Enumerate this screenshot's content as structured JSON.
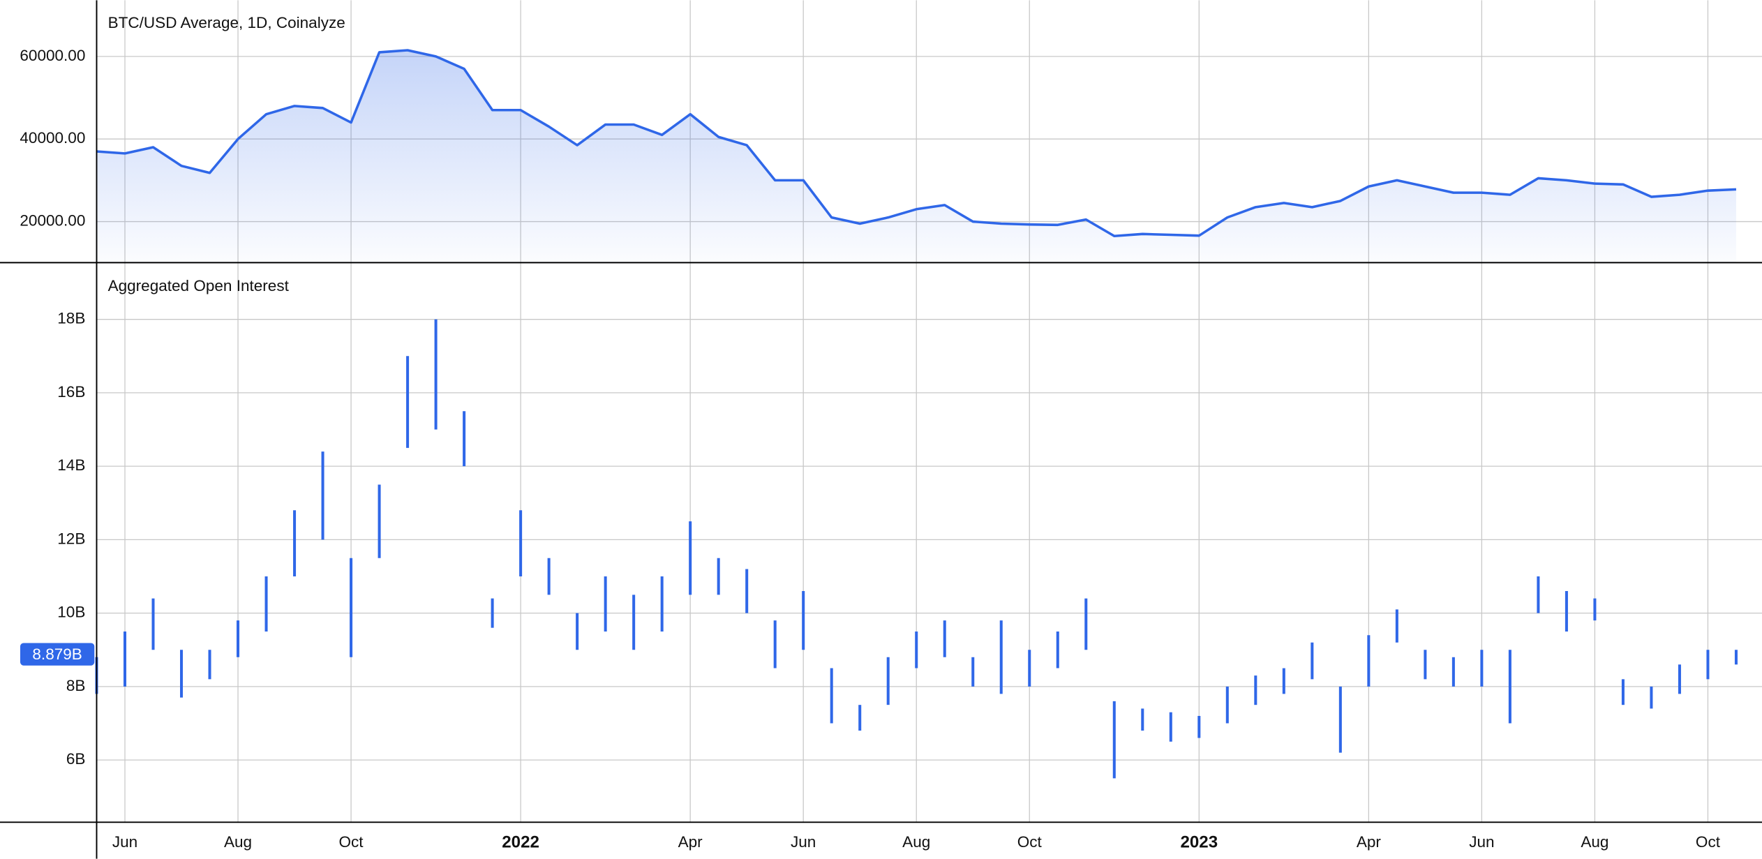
{
  "chart_data": [
    {
      "type": "area-line",
      "title": "BTC/USD Average, 1D, Coinalyze",
      "color": "#2f67e8",
      "values": [
        37000,
        36500,
        38000,
        33500,
        31800,
        40000,
        46000,
        48000,
        47500,
        44000,
        61000,
        61500,
        60000,
        57000,
        47000,
        47000,
        43000,
        38500,
        43500,
        43500,
        41000,
        46000,
        40500,
        38500,
        30000,
        30000,
        21000,
        19500,
        21000,
        23000,
        24000,
        20000,
        19500,
        19300,
        19200,
        20500,
        16500,
        17000,
        16800,
        16600,
        21000,
        23500,
        24500,
        23500,
        25000,
        28500,
        30000,
        28500,
        27000,
        27000,
        26500,
        30500,
        30000,
        29200,
        29000,
        26000,
        26500,
        27500,
        27800
      ],
      "ylim": [
        10200,
        73600
      ],
      "yticks": [
        {
          "value": 20000,
          "label": "20000.00"
        },
        {
          "value": 40000,
          "label": "40000.00"
        },
        {
          "value": 60000,
          "label": "60000.00"
        }
      ],
      "grid": true
    },
    {
      "type": "range-bar",
      "title": "Aggregated Open Interest",
      "color": "#2f67e8",
      "categories": [
        null,
        "Jun",
        null,
        null,
        null,
        "Aug",
        null,
        null,
        null,
        "Oct",
        null,
        null,
        null,
        null,
        null,
        "2022",
        null,
        null,
        null,
        null,
        null,
        "Apr",
        null,
        null,
        null,
        "Jun",
        null,
        null,
        null,
        "Aug",
        null,
        null,
        null,
        "Oct",
        null,
        null,
        null,
        null,
        null,
        "2023",
        null,
        null,
        null,
        null,
        null,
        "Apr",
        null,
        null,
        null,
        "Jun",
        null,
        null,
        null,
        "Aug",
        null,
        null,
        null,
        "Oct",
        null
      ],
      "high": [
        8.8,
        9.5,
        10.4,
        9.0,
        9.0,
        9.8,
        11.0,
        12.8,
        14.4,
        11.5,
        13.5,
        17.0,
        18.0,
        15.5,
        10.4,
        12.8,
        11.5,
        10.0,
        11.0,
        10.5,
        11.0,
        12.5,
        11.5,
        11.2,
        9.8,
        10.6,
        8.5,
        7.5,
        8.8,
        9.5,
        9.8,
        8.8,
        9.8,
        9.0,
        9.5,
        10.4,
        7.6,
        7.4,
        7.3,
        7.2,
        8.0,
        8.3,
        8.5,
        9.2,
        8.0,
        9.4,
        10.1,
        9.0,
        8.8,
        9.0,
        9.0,
        11.0,
        10.6,
        10.4,
        8.2,
        8.0,
        8.6,
        9.0,
        9.0
      ],
      "low": [
        7.8,
        8.0,
        9.0,
        7.7,
        8.2,
        8.8,
        9.5,
        11.0,
        12.0,
        8.8,
        11.5,
        14.5,
        15.0,
        14.0,
        9.6,
        11.0,
        10.5,
        9.0,
        9.5,
        9.0,
        9.5,
        10.5,
        10.5,
        10.0,
        8.5,
        9.0,
        7.0,
        6.8,
        7.5,
        8.5,
        8.8,
        8.0,
        7.8,
        8.0,
        8.5,
        9.0,
        5.5,
        6.8,
        6.5,
        6.6,
        7.0,
        7.5,
        7.8,
        8.2,
        6.2,
        8.0,
        9.2,
        8.2,
        8.0,
        8.0,
        7.0,
        10.0,
        9.5,
        9.8,
        7.5,
        7.4,
        7.8,
        8.2,
        8.6
      ],
      "last_value": {
        "value": 8.879,
        "label": "8.879B"
      },
      "ylim": [
        4.32,
        19.53
      ],
      "yticks": [
        {
          "value": 6,
          "label": "6B"
        },
        {
          "value": 8,
          "label": "8B"
        },
        {
          "value": 10,
          "label": "10B"
        },
        {
          "value": 12,
          "label": "12B"
        },
        {
          "value": 14,
          "label": "14B"
        },
        {
          "value": 16,
          "label": "16B"
        },
        {
          "value": 18,
          "label": "18B"
        }
      ],
      "grid": true
    }
  ]
}
